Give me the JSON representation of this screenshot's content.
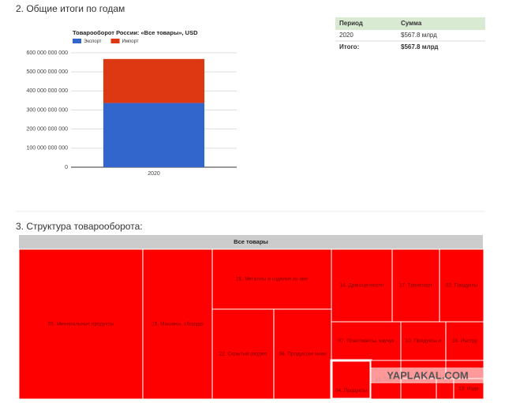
{
  "section1": {
    "heading": "2. Общие итоги по годам"
  },
  "chart_data": {
    "type": "bar",
    "stacked": true,
    "title": "Товарооборот России: «Все товары», USD",
    "categories": [
      "2020"
    ],
    "series": [
      {
        "name": "Экспорт",
        "color": "#3366cc",
        "values": [
          337000000000
        ]
      },
      {
        "name": "Импорт",
        "color": "#dc3912",
        "values": [
          230800000000
        ]
      }
    ],
    "ylim": [
      0,
      600000000000
    ],
    "yticks": [
      0,
      {
        "value": 100000000000,
        "label": "100 000 000 000"
      },
      {
        "value": 200000000000,
        "label": "200 000 000 000"
      },
      {
        "value": 300000000000,
        "label": "300 000 000 000"
      },
      {
        "value": 400000000000,
        "label": "400 000 000 000"
      },
      {
        "value": 500000000000,
        "label": "500 000 000 000"
      },
      {
        "value": 600000000000,
        "label": "600 000 000 000"
      }
    ],
    "grid": true,
    "legend": "top"
  },
  "table": {
    "header": [
      "Период",
      "Сумма"
    ],
    "rows": [
      [
        "2020",
        "$567.8 млрд"
      ]
    ],
    "total": [
      "Итого:",
      "$567.8 млрд"
    ]
  },
  "section2": {
    "heading": "3. Структура товарооборота:"
  },
  "treemap": {
    "root": "Все товары",
    "labels": [
      "05. Минеральные продукты",
      "16. Машины, оборудо",
      "15. Металлы и изделия из них",
      "22. Скрытый раздел",
      "06. Продукция хими",
      "14. Драгоценности",
      "17. Транспорт",
      "02. Продукты",
      "07. Пластмассы, каучук",
      "10. Продукты и",
      "18. Инстру",
      "04. Продукты",
      "11. Текст",
      "13. Изде"
    ]
  },
  "watermark": "YAPLAKAL.COM"
}
